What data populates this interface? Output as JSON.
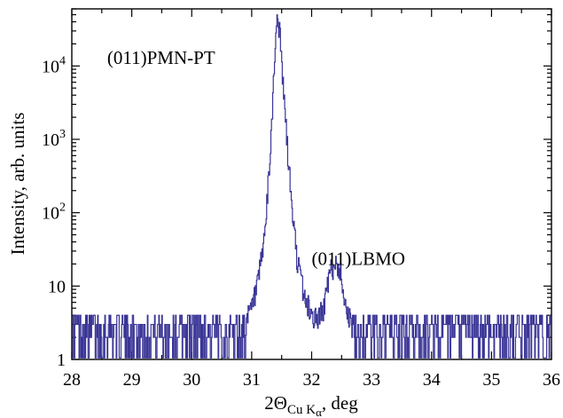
{
  "chart_data": {
    "type": "line",
    "title": "",
    "xlabel": {
      "main": "2Θ",
      "sub": "Cu K",
      "subsub": "α",
      "rest": ", deg"
    },
    "ylabel": "Intensity, arb. units",
    "xlim": [
      28,
      36
    ],
    "ylim": [
      1,
      60000
    ],
    "yscale": "log",
    "x_ticks": [
      28,
      29,
      30,
      31,
      32,
      33,
      34,
      35,
      36
    ],
    "x_tick_labels": [
      "28",
      "29",
      "30",
      "31",
      "32",
      "33",
      "34",
      "35",
      "36"
    ],
    "y_ticks": [
      {
        "value": 1,
        "base": "1",
        "exp": ""
      },
      {
        "value": 10,
        "base": "10",
        "exp": ""
      },
      {
        "value": 100,
        "base": "10",
        "exp": "2"
      },
      {
        "value": 1000,
        "base": "10",
        "exp": "3"
      },
      {
        "value": 10000,
        "base": "10",
        "exp": "4"
      }
    ],
    "grid": false,
    "line_color": "#3a3596",
    "annotations": [
      {
        "text": "(011)PMN-PT",
        "x": 31.4,
        "y": 48000
      },
      {
        "text": "(011)LBMO",
        "x": 32.4,
        "y": 20
      }
    ],
    "series": [
      {
        "values_x": [
          28.0,
          28.25,
          28.5,
          28.75,
          29.0,
          29.25,
          29.5,
          29.75,
          30.0,
          30.25,
          30.5,
          30.75,
          30.9,
          31.0,
          31.1,
          31.2,
          31.25,
          31.3,
          31.35,
          31.4,
          31.43,
          31.46,
          31.5,
          31.55,
          31.6,
          31.65,
          31.7,
          31.75,
          31.8,
          31.85,
          31.9,
          31.95,
          32.0,
          32.1,
          32.2,
          32.25,
          32.3,
          32.35,
          32.4,
          32.45,
          32.5,
          32.55,
          32.6,
          32.7,
          32.8,
          33.0,
          33.5,
          34.0,
          34.5,
          35.0,
          35.5,
          36.0
        ],
        "values_y": [
          1.5,
          1.5,
          1.5,
          1.5,
          1.5,
          1.5,
          1.5,
          1.5,
          1.5,
          1.5,
          1.6,
          2,
          3,
          5,
          10,
          40,
          120,
          500,
          4000,
          30000,
          48000,
          30000,
          9000,
          2500,
          600,
          180,
          60,
          25,
          14,
          9,
          6,
          5,
          4,
          3.5,
          5,
          9,
          14,
          18,
          20,
          18,
          12,
          7,
          4,
          2.5,
          1.8,
          1.5,
          1.5,
          1.5,
          1.5,
          1.5,
          1.5,
          1.5
        ]
      }
    ]
  }
}
